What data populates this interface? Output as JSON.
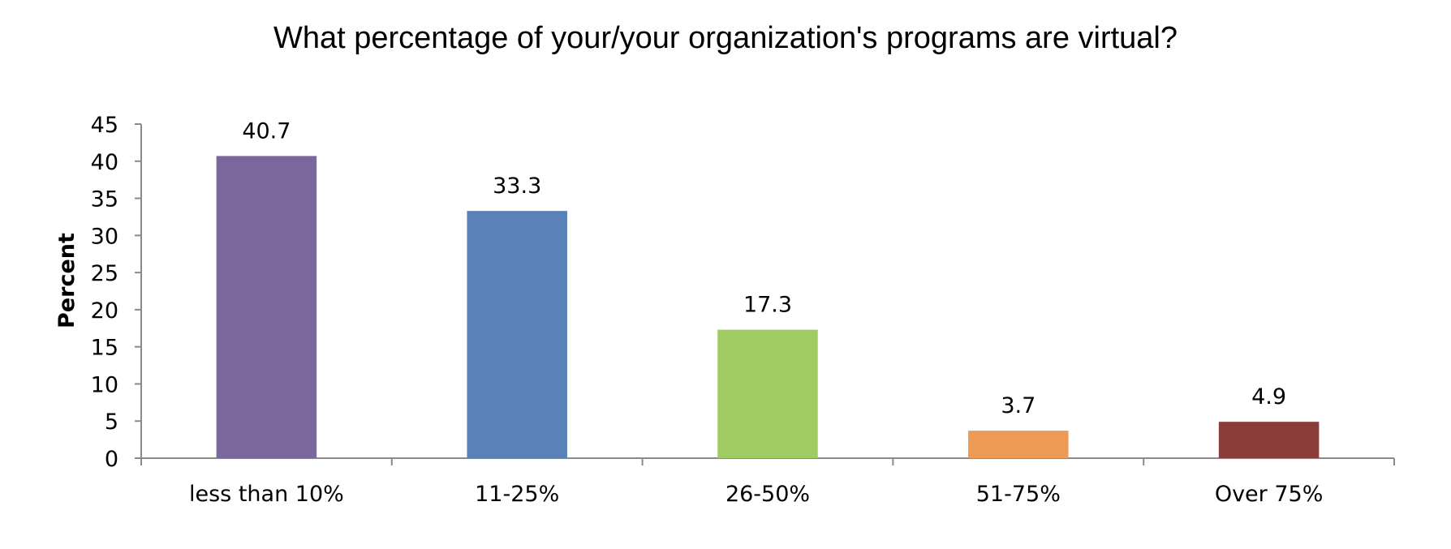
{
  "chart_data": {
    "type": "bar",
    "title": "What percentage of your/your organization's programs are virtual?",
    "xlabel": "",
    "ylabel": "Percent",
    "categories": [
      "less than 10%",
      "11-25%",
      "26-50%",
      "51-75%",
      "Over 75%"
    ],
    "values": [
      40.7,
      33.3,
      17.3,
      3.7,
      4.9
    ],
    "value_labels": [
      "40.7",
      "33.3",
      "17.3",
      "3.7",
      "4.9"
    ],
    "colors": [
      "#7b679c",
      "#5b82b8",
      "#a0cb62",
      "#ec9a55",
      "#8b3d3a"
    ],
    "ylim": [
      0,
      45
    ],
    "yticks": [
      0,
      5,
      10,
      15,
      20,
      25,
      30,
      35,
      40,
      45
    ],
    "grid": false,
    "legend": "none",
    "axis_color": "#8a8a8a"
  }
}
